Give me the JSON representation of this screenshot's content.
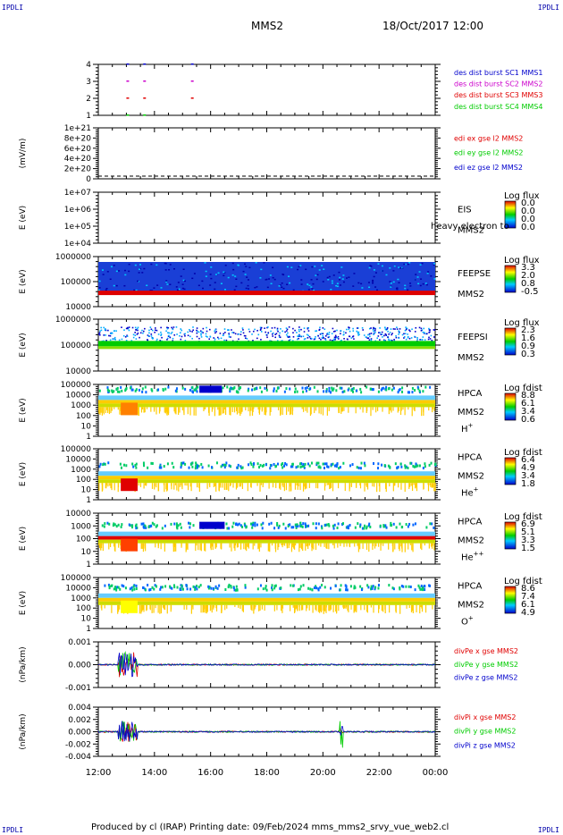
{
  "corners": {
    "tl": "IPDLI",
    "tr": "IPDLI",
    "bl": "IPDLI",
    "br": "IPDLI"
  },
  "header": {
    "spacecraft": "MMS2",
    "datetime": "18/Oct/2017 12:00"
  },
  "footer": {
    "text": "Produced by cl (IRAP)    Printing date: 09/Feb/2024    mms_mms2_srvy_vue_web2.cl"
  },
  "colors": {
    "red": "#e00000",
    "green": "#00cc00",
    "blue": "#0000cc",
    "magenta": "#cc00cc"
  },
  "chart_data": {
    "type": "multi-panel time series / spectrogram",
    "time_axis": {
      "ticks": [
        "12:00",
        "14:00",
        "16:00",
        "18:00",
        "20:00",
        "22:00",
        "00:00"
      ]
    },
    "panels": [
      {
        "id": "burst",
        "type": "scatter",
        "ylabel": "",
        "yticks": [
          "4",
          "3",
          "2",
          "1"
        ],
        "legend": [
          {
            "text": "des dist burst SC1 MMS1",
            "color": "#0000cc"
          },
          {
            "text": "des dist burst SC2 MMS2",
            "color": "#cc00cc"
          },
          {
            "text": "des dist burst SC3 MMS3",
            "color": "#e00000"
          },
          {
            "text": "des dist burst SC4 MMS4",
            "color": "#00cc00"
          }
        ]
      },
      {
        "id": "edi",
        "type": "line",
        "ylabel": "(mV/m)",
        "yticks": [
          "1e+21",
          "8e+20",
          "6e+20",
          "4e+20",
          "2e+20",
          "0"
        ],
        "legend": [
          {
            "text": "edi ex gse l2 MMS2",
            "color": "#e00000"
          },
          {
            "text": "edi ey gse l2 MMS2",
            "color": "#00cc00"
          },
          {
            "text": "edi ez gse l2 MMS2",
            "color": "#0000cc"
          }
        ]
      },
      {
        "id": "eis",
        "type": "heatmap",
        "ylabel": "E (eV)",
        "yticks": [
          "1e+07",
          "1e+06",
          "1e+05",
          "1e+04"
        ],
        "label_lines": [
          "EIS",
          "MMS2"
        ],
        "overlay_text": "heavy electron to",
        "cb_title": "Log flux",
        "cb_ticks": [
          "0.0",
          "0.0",
          "0.0",
          "0.0"
        ]
      },
      {
        "id": "feepse",
        "type": "heatmap",
        "ylabel": "E (eV)",
        "yticks": [
          "1000000",
          "100000",
          "10000"
        ],
        "label_lines": [
          "FEEPSE",
          "MMS2"
        ],
        "cb_title": "Log flux",
        "cb_ticks": [
          "3.3",
          "2.0",
          "0.8",
          "-0.5"
        ]
      },
      {
        "id": "feepsi",
        "type": "heatmap",
        "ylabel": "E (eV)",
        "yticks": [
          "1000000",
          "100000",
          "10000"
        ],
        "label_lines": [
          "FEEPSI",
          "MMS2"
        ],
        "cb_title": "Log flux",
        "cb_ticks": [
          "2.3",
          "1.6",
          "0.9",
          "0.3"
        ]
      },
      {
        "id": "hpca_h",
        "type": "heatmap",
        "ylabel": "E (eV)",
        "yticks": [
          "100000",
          "10000",
          "1000",
          "100",
          "10",
          "1"
        ],
        "label_lines": [
          "HPCA",
          "MMS2"
        ],
        "species": "H",
        "species_sup": "+",
        "cb_title": "Log fdist",
        "cb_ticks": [
          "8.8",
          "6.1",
          "3.4",
          "0.6"
        ]
      },
      {
        "id": "hpca_he1",
        "type": "heatmap",
        "ylabel": "E (eV)",
        "yticks": [
          "100000",
          "10000",
          "1000",
          "100",
          "10",
          "1"
        ],
        "label_lines": [
          "HPCA",
          "MMS2"
        ],
        "species": "He",
        "species_sup": "+",
        "cb_title": "Log fdist",
        "cb_ticks": [
          "6.4",
          "4.9",
          "3.4",
          "1.8"
        ]
      },
      {
        "id": "hpca_he2",
        "type": "heatmap",
        "ylabel": "E (eV)",
        "yticks": [
          "10000",
          "1000",
          "100",
          "10",
          "1"
        ],
        "label_lines": [
          "HPCA",
          "MMS2"
        ],
        "species": "He",
        "species_sup": "++",
        "cb_title": "Log fdist",
        "cb_ticks": [
          "6.9",
          "5.1",
          "3.3",
          "1.5"
        ]
      },
      {
        "id": "hpca_o",
        "type": "heatmap",
        "ylabel": "E (eV)",
        "yticks": [
          "100000",
          "10000",
          "1000",
          "100",
          "10",
          "1"
        ],
        "label_lines": [
          "HPCA",
          "MMS2"
        ],
        "species": "O",
        "species_sup": "+",
        "cb_title": "Log fdist",
        "cb_ticks": [
          "8.6",
          "7.4",
          "6.1",
          "4.9"
        ]
      },
      {
        "id": "divpe",
        "type": "line",
        "ylabel": "(nPa/km)",
        "yticks": [
          "0.001",
          "0.000",
          "-0.001"
        ],
        "legend": [
          {
            "text": "divPe x gse MMS2",
            "color": "#e00000"
          },
          {
            "text": "divPe y gse MMS2",
            "color": "#00cc00"
          },
          {
            "text": "divPe z gse MMS2",
            "color": "#0000cc"
          }
        ]
      },
      {
        "id": "divpi",
        "type": "line",
        "ylabel": "(nPa/km)",
        "yticks": [
          "0.004",
          "0.002",
          "0.000",
          "-0.002",
          "-0.004"
        ],
        "legend": [
          {
            "text": "divPi x gse MMS2",
            "color": "#e00000"
          },
          {
            "text": "divPi y gse MMS2",
            "color": "#00cc00"
          },
          {
            "text": "divPi z gse MMS2",
            "color": "#0000cc"
          }
        ]
      }
    ]
  }
}
